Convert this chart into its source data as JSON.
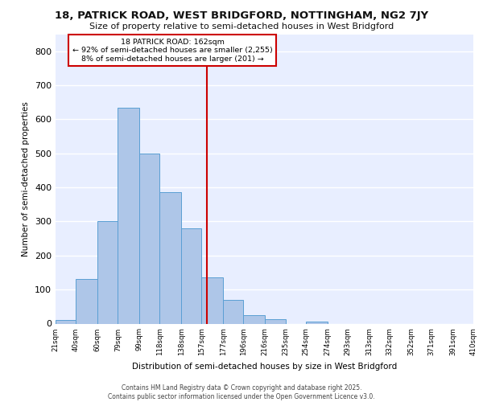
{
  "title_line1": "18, PATRICK ROAD, WEST BRIDGFORD, NOTTINGHAM, NG2 7JY",
  "title_line2": "Size of property relative to semi-detached houses in West Bridgford",
  "xlabel": "Distribution of semi-detached houses by size in West Bridgford",
  "ylabel": "Number of semi-detached properties",
  "bin_labels": [
    "21sqm",
    "40sqm",
    "60sqm",
    "79sqm",
    "99sqm",
    "118sqm",
    "138sqm",
    "157sqm",
    "177sqm",
    "196sqm",
    "216sqm",
    "235sqm",
    "254sqm",
    "274sqm",
    "293sqm",
    "313sqm",
    "332sqm",
    "352sqm",
    "371sqm",
    "391sqm",
    "410sqm"
  ],
  "bin_edges": [
    21,
    40,
    60,
    79,
    99,
    118,
    138,
    157,
    177,
    196,
    216,
    235,
    254,
    274,
    293,
    313,
    332,
    352,
    371,
    391,
    410
  ],
  "bar_heights": [
    10,
    130,
    300,
    635,
    500,
    385,
    280,
    135,
    70,
    25,
    13,
    0,
    5,
    0,
    0,
    0,
    0,
    0,
    0,
    0
  ],
  "property_size": 162,
  "pct_smaller": 92,
  "n_smaller": 2255,
  "pct_larger": 8,
  "n_larger": 201,
  "bar_color": "#aec6e8",
  "bar_edge_color": "#5a9fd4",
  "vline_color": "#cc0000",
  "annotation_box_edge": "#cc0000",
  "background_color": "#e8eeff",
  "grid_color": "#ffffff",
  "footer_line1": "Contains HM Land Registry data © Crown copyright and database right 2025.",
  "footer_line2": "Contains public sector information licensed under the Open Government Licence v3.0.",
  "ylim": [
    0,
    850
  ],
  "yticks": [
    0,
    100,
    200,
    300,
    400,
    500,
    600,
    700,
    800
  ]
}
